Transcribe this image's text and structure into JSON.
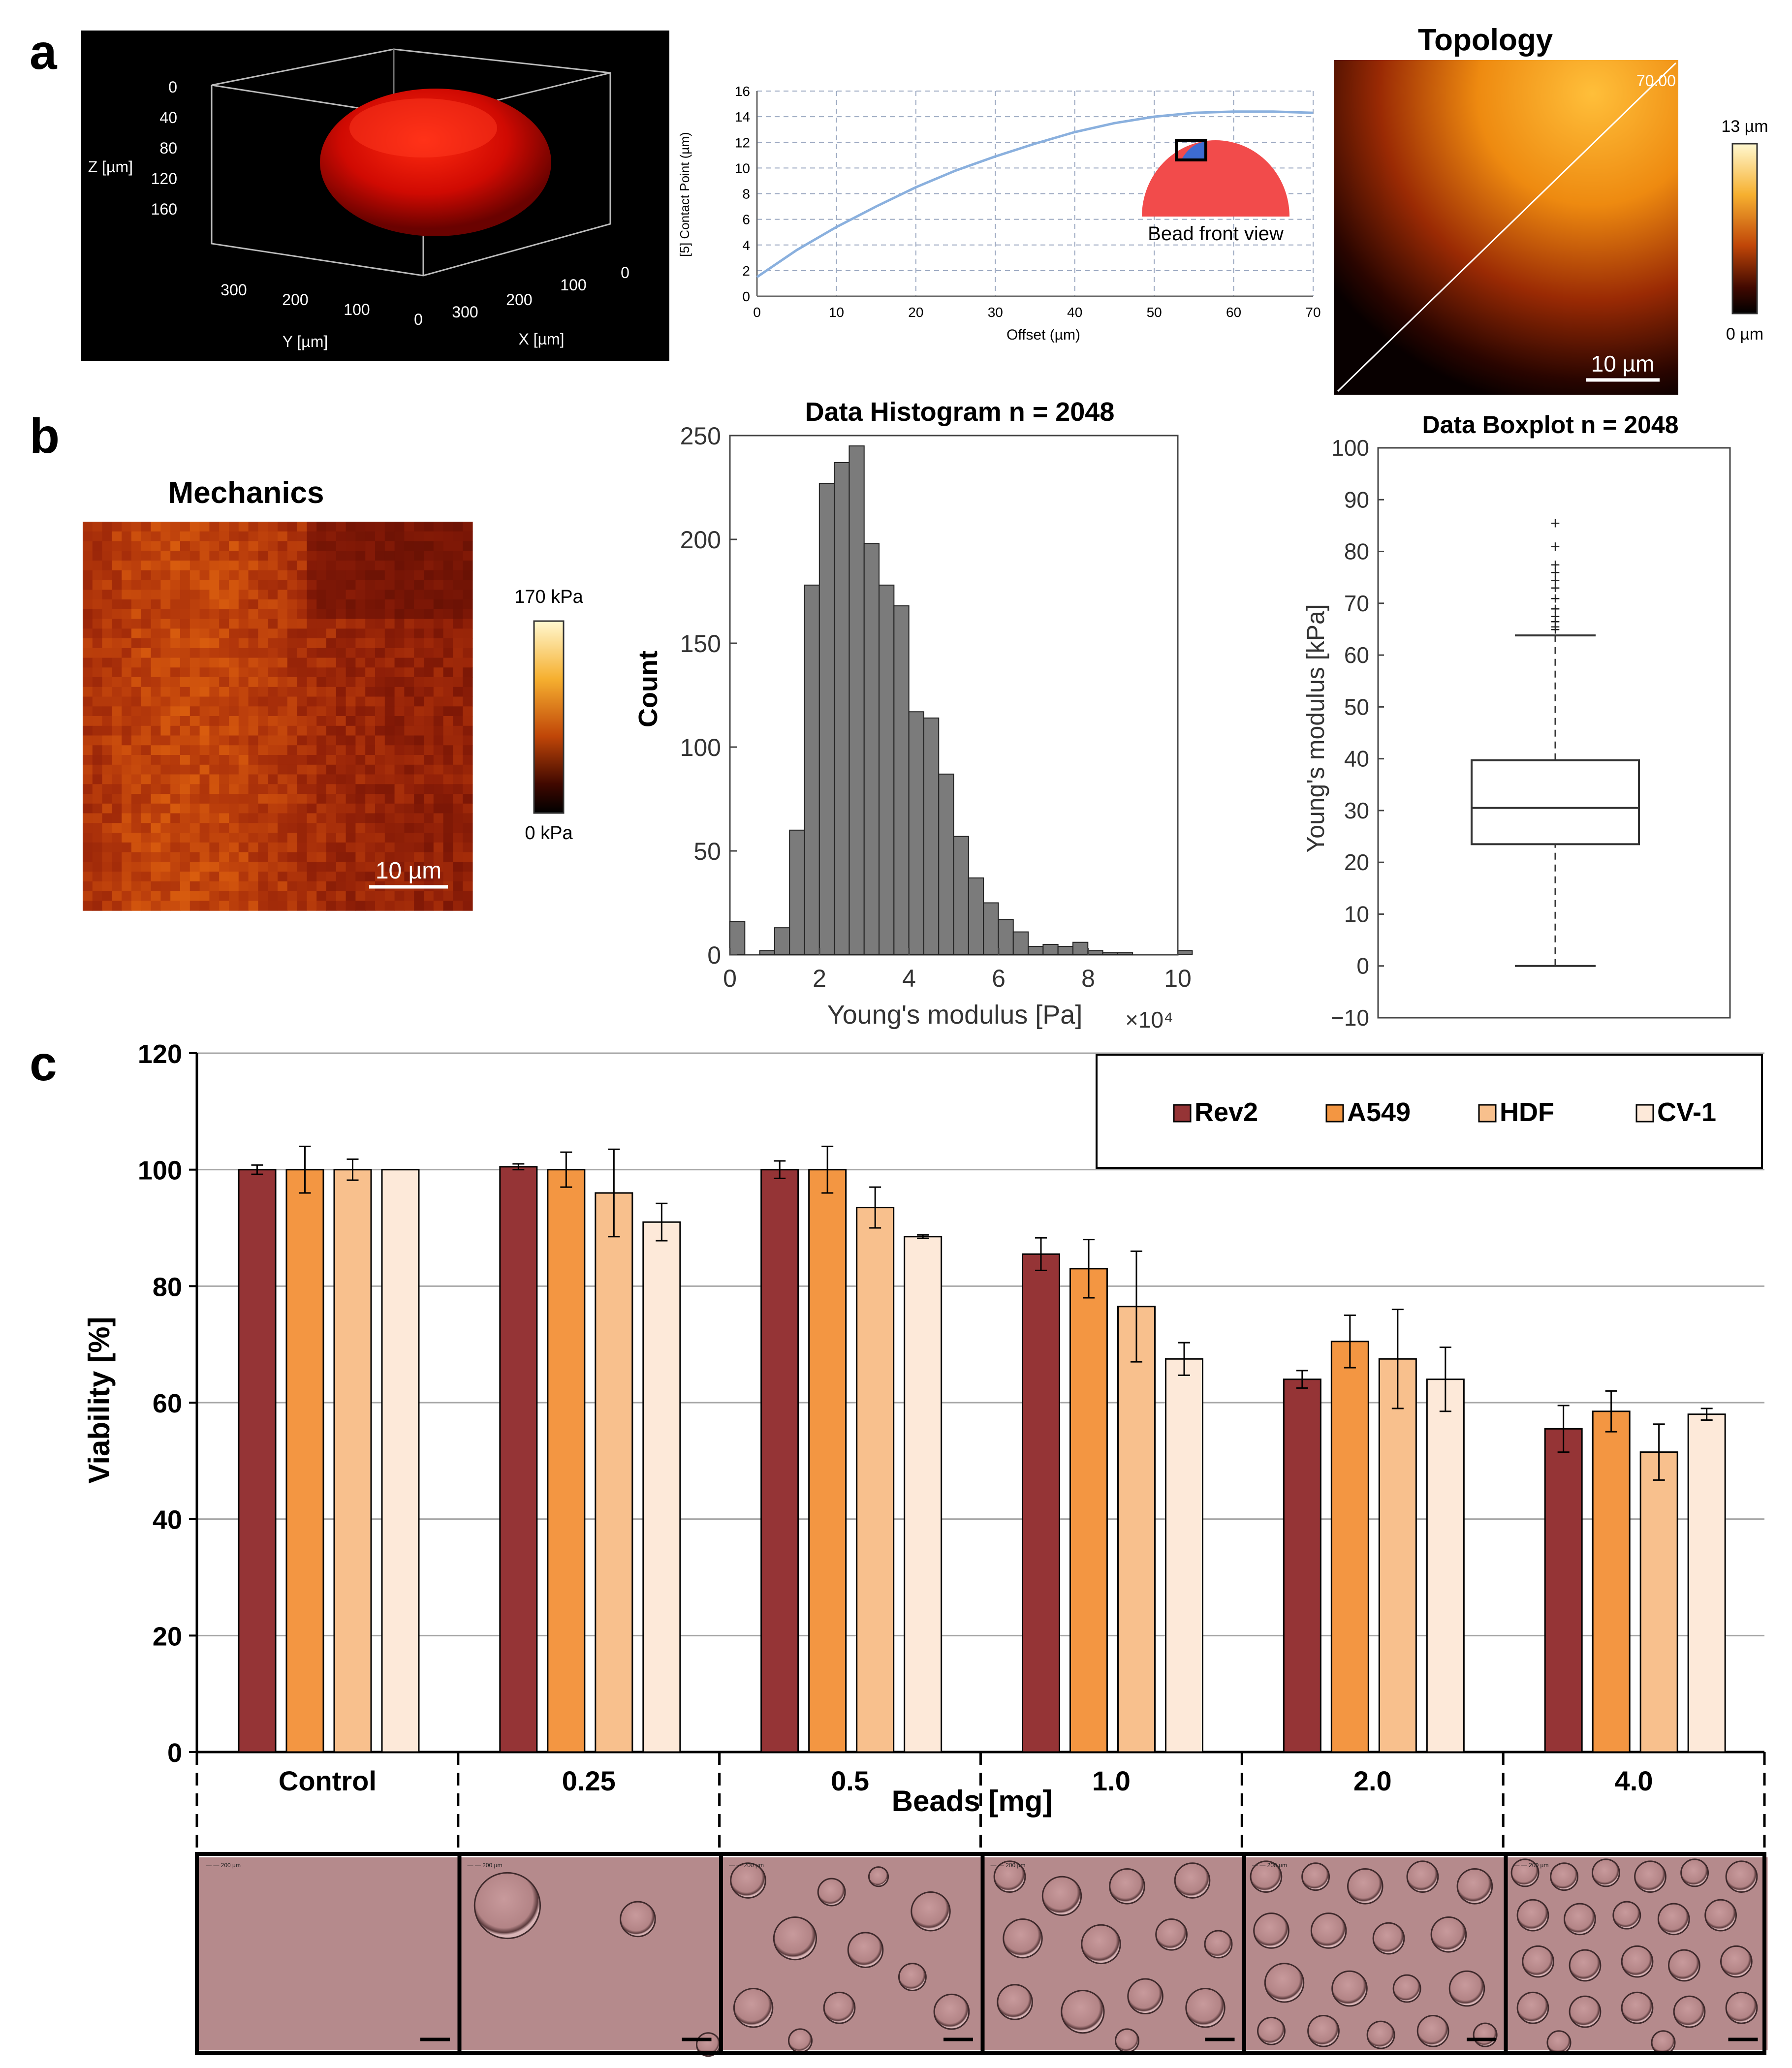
{
  "panel_labels": {
    "a": "a",
    "b": "b",
    "c": "c"
  },
  "panel_a": {
    "render3d": {
      "z_label": "Z [µm]",
      "z_ticks": [
        "0",
        "40",
        "80",
        "120",
        "160"
      ],
      "y_label": "Y [µm]",
      "y_ticks": [
        "300",
        "200",
        "100",
        "0"
      ],
      "x_label": "X [µm]",
      "x_ticks": [
        "300",
        "200",
        "100",
        "0"
      ]
    },
    "profile": {
      "ylabel": "[5] Contact Point (µm)",
      "xlabel": "Offset (µm)",
      "inset_label": "Bead front view"
    },
    "topology": {
      "title": "Topology",
      "line_label": "70.00",
      "scalebar": "10 µm",
      "cbar_max": "13 µm",
      "cbar_min": "0 µm"
    }
  },
  "panel_b": {
    "mechanics": {
      "title": "Mechanics",
      "scalebar": "10 µm",
      "cbar_max": "170 kPa",
      "cbar_min": "0 kPa"
    },
    "x_exponent": "×10⁴",
    "boxplot_extras": {
      "whisker_low": 0,
      "whisker_high": 63.8,
      "outliers": [
        65,
        65.5,
        66.5,
        67.5,
        69,
        71,
        73,
        74.5,
        76,
        77.5,
        81,
        85.5
      ]
    }
  },
  "panel_c": {
    "legend_colors": [
      "#953436",
      "#f39642",
      "#f8c08d",
      "#fde9d9"
    ],
    "micrographs": [
      {
        "group": "Control",
        "scale_text": "— — 200 µm"
      },
      {
        "group": "0.25",
        "scale_text": "— — 200 µm"
      },
      {
        "group": "0.5",
        "scale_text": "— — 200 µm"
      },
      {
        "group": "1.0",
        "scale_text": "— — 200 µm"
      },
      {
        "group": "2.0",
        "scale_text": "— — 200 µm"
      },
      {
        "group": "4.0",
        "scale_text": "— — 200 µm"
      }
    ]
  },
  "chart_data": [
    {
      "id": "contact_point_profile",
      "type": "line",
      "title": "",
      "xlabel": "Offset (µm)",
      "ylabel": "[5] Contact Point (µm)",
      "xlim": [
        0,
        70
      ],
      "ylim": [
        0,
        16
      ],
      "xticks": [
        "0",
        "10",
        "20",
        "30",
        "40",
        "50",
        "60",
        "70"
      ],
      "yticks": [
        "0",
        "2",
        "4",
        "6",
        "8",
        "10",
        "12",
        "14",
        "16"
      ],
      "series": [
        {
          "name": "profile",
          "x": [
            0,
            5,
            10,
            15,
            20,
            25,
            30,
            35,
            40,
            45,
            50,
            55,
            60,
            65,
            70
          ],
          "y": [
            1.5,
            3.6,
            5.4,
            7.0,
            8.5,
            9.8,
            10.9,
            11.9,
            12.8,
            13.5,
            14.0,
            14.3,
            14.4,
            14.4,
            14.3
          ]
        }
      ]
    },
    {
      "id": "youngs_histogram",
      "type": "bar",
      "title": "Data Histogram n = 2048",
      "xlabel": "Young's modulus [Pa]",
      "ylabel": "Count",
      "xlim": [
        0,
        10
      ],
      "ylim": [
        0,
        250
      ],
      "xticks": [
        "0",
        "2",
        "4",
        "6",
        "8",
        "10"
      ],
      "yticks": [
        "0",
        "50",
        "100",
        "150",
        "200",
        "250"
      ],
      "bin_width": 0.333,
      "values": [
        16,
        0,
        2,
        13,
        60,
        178,
        227,
        237,
        245,
        198,
        178,
        168,
        117,
        114,
        87,
        57,
        37,
        25,
        17,
        11,
        4,
        5,
        4,
        6,
        2,
        1,
        1,
        0,
        0,
        0,
        2
      ]
    },
    {
      "id": "youngs_boxplot",
      "type": "box",
      "title": "Data Boxplot n = 2048",
      "ylabel": "Young's modulus [kPa]",
      "ylim": [
        -10,
        100
      ],
      "yticks": [
        "−10",
        "0",
        "10",
        "20",
        "30",
        "40",
        "50",
        "60",
        "70",
        "80",
        "90",
        "100"
      ],
      "q1": 23.5,
      "median": 30.5,
      "q3": 39.7
    },
    {
      "id": "viability",
      "type": "bar",
      "title": "",
      "xlabel": "Beads [mg]",
      "ylabel": "Viability [%]",
      "ylim": [
        0,
        120
      ],
      "yticks": [
        "0",
        "20",
        "40",
        "60",
        "80",
        "100",
        "120"
      ],
      "categories": [
        "Control",
        "0.25",
        "0.5",
        "1.0",
        "2.0",
        "4.0"
      ],
      "series": [
        {
          "name": "Rev2",
          "values": [
            100,
            100.5,
            100,
            85.5,
            64,
            55.5
          ],
          "errors": [
            0.8,
            0.5,
            1.5,
            2.8,
            1.5,
            4.0
          ]
        },
        {
          "name": "A549",
          "values": [
            100,
            100,
            100,
            83,
            70.5,
            58.5
          ],
          "errors": [
            4.0,
            3.0,
            4.0,
            5.0,
            4.5,
            3.5
          ]
        },
        {
          "name": "HDF",
          "values": [
            100,
            96,
            93.5,
            76.5,
            67.5,
            51.5
          ],
          "errors": [
            1.8,
            7.5,
            3.5,
            9.5,
            8.5,
            4.8
          ]
        },
        {
          "name": "CV-1",
          "values": [
            100,
            91,
            88.5,
            67.5,
            64,
            58
          ],
          "errors": [
            0,
            3.2,
            0.3,
            2.8,
            5.5,
            1.0
          ]
        }
      ],
      "legend_position": "top-right",
      "grid": true
    }
  ]
}
